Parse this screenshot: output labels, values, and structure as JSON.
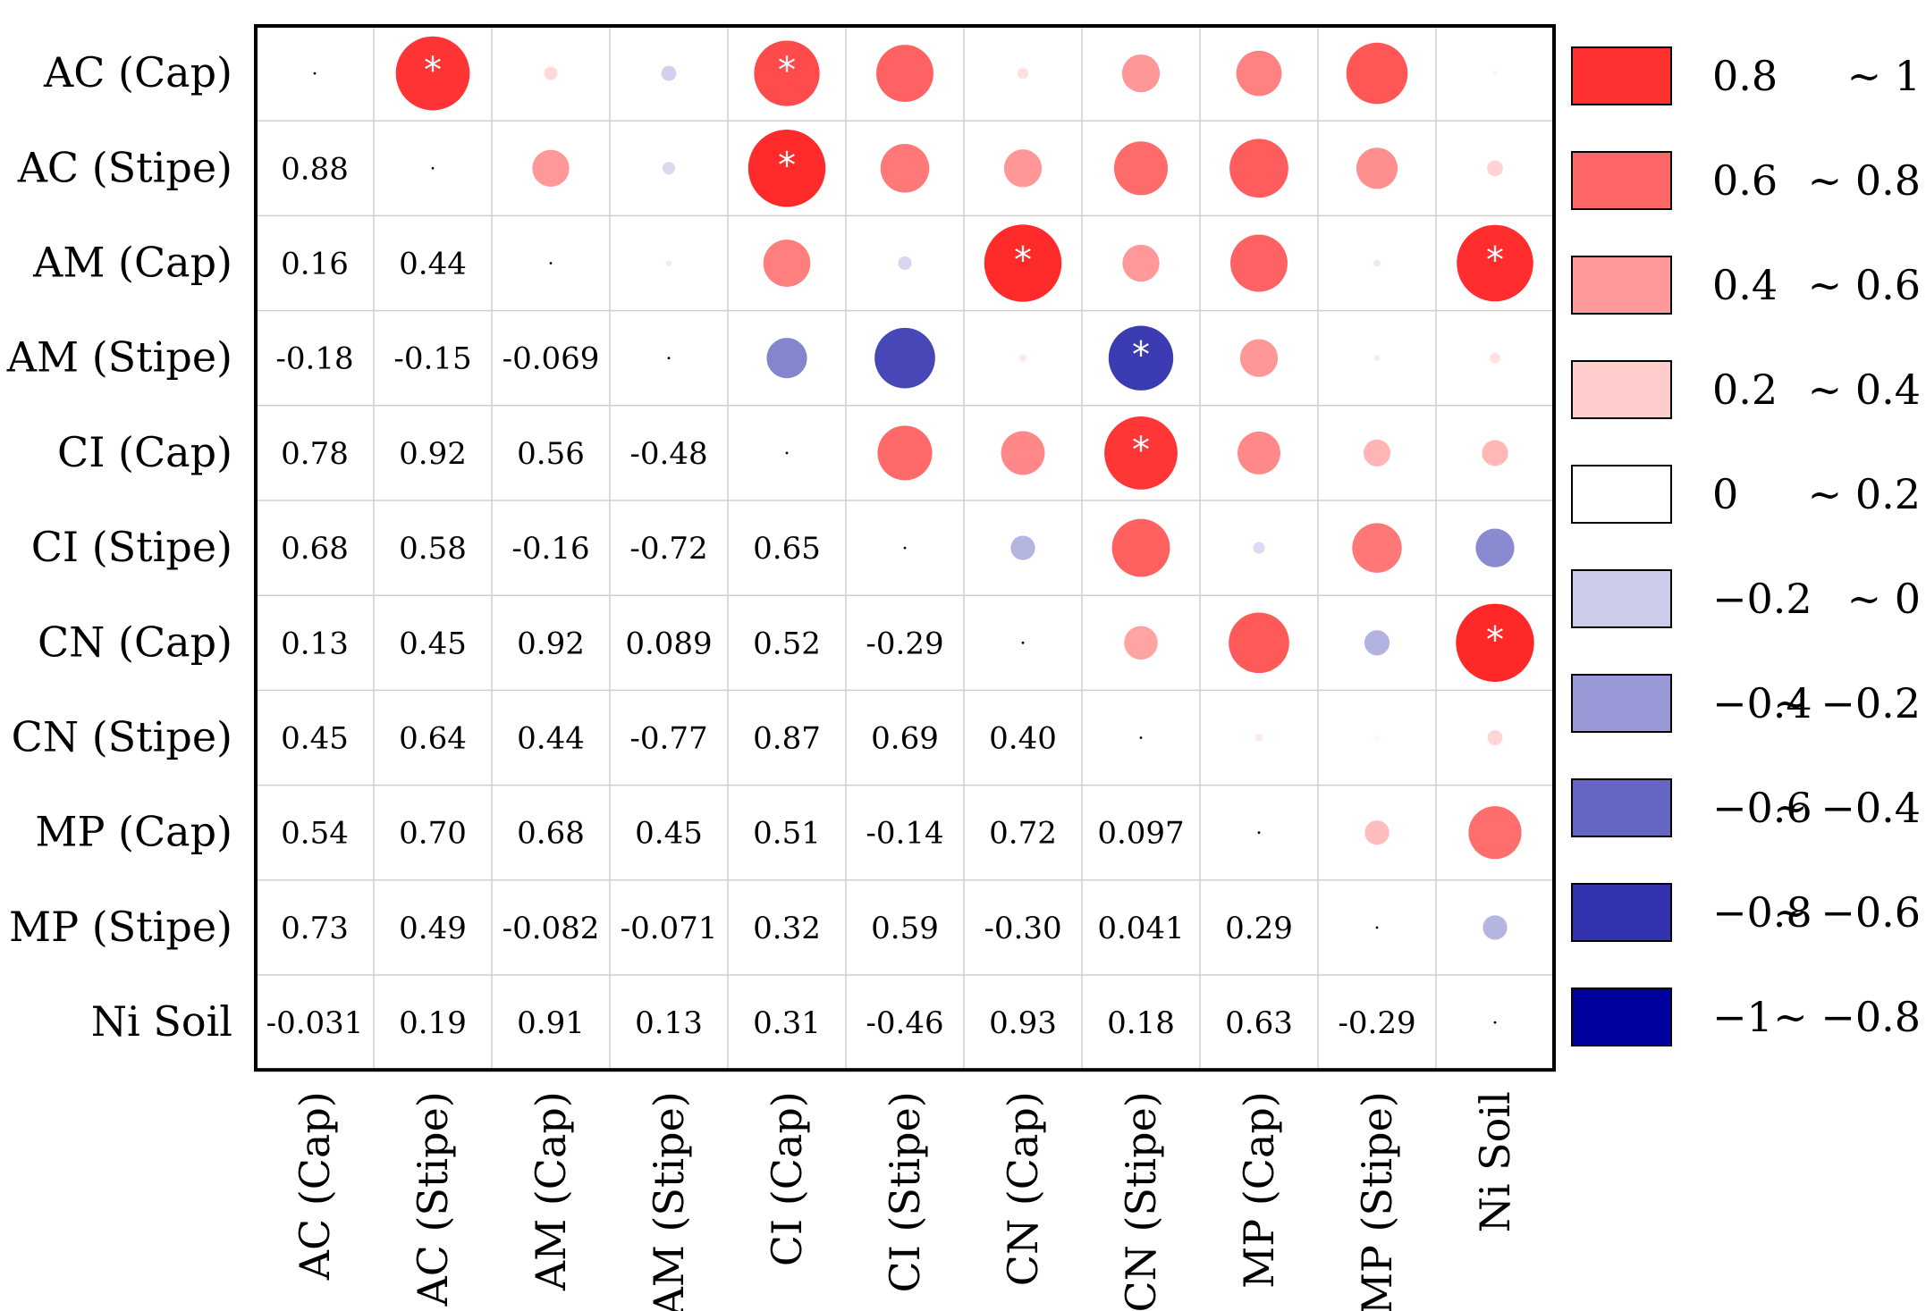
{
  "chart_data": {
    "type": "heatmap",
    "variables": [
      "AC (Cap)",
      "AC (Stipe)",
      "AM (Cap)",
      "AM (Stipe)",
      "CI (Cap)",
      "CI (Stipe)",
      "CN (Cap)",
      "CN (Stipe)",
      "MP (Cap)",
      "MP (Stipe)",
      "Ni Soil"
    ],
    "lower_labels": [
      [],
      [
        "0.88"
      ],
      [
        "0.16",
        "0.44"
      ],
      [
        "-0.18",
        "-0.15",
        "-0.069"
      ],
      [
        "0.78",
        "0.92",
        "0.56",
        "-0.48"
      ],
      [
        "0.68",
        "0.58",
        "-0.16",
        "-0.72",
        "0.65"
      ],
      [
        "0.13",
        "0.45",
        "0.92",
        "0.089",
        "0.52",
        "-0.29"
      ],
      [
        "0.45",
        "0.64",
        "0.44",
        "-0.77",
        "0.87",
        "0.69",
        "0.40"
      ],
      [
        "0.54",
        "0.70",
        "0.68",
        "0.45",
        "0.51",
        "-0.14",
        "0.72",
        "0.097"
      ],
      [
        "0.73",
        "0.49",
        "-0.082",
        "-0.071",
        "0.32",
        "0.59",
        "-0.30",
        "0.041",
        "0.29"
      ],
      [
        "-0.031",
        "0.19",
        "0.91",
        "0.13",
        "0.31",
        "-0.46",
        "0.93",
        "0.18",
        "0.63",
        "-0.29"
      ]
    ],
    "significance_marker": "*",
    "significant_pairs": [
      [
        0,
        1
      ],
      [
        0,
        4
      ],
      [
        1,
        4
      ],
      [
        2,
        6
      ],
      [
        2,
        10
      ],
      [
        3,
        7
      ],
      [
        4,
        7
      ],
      [
        6,
        10
      ]
    ],
    "legend": [
      {
        "label": "0.8",
        "range_end": "~ 1",
        "color": "#ff3030"
      },
      {
        "label": "0.6",
        "range_end": "~ 0.8",
        "color": "#ff6666"
      },
      {
        "label": "0.4",
        "range_end": "~ 0.6",
        "color": "#ff9999"
      },
      {
        "label": "0.2",
        "range_end": "~ 0.4",
        "color": "#ffcccc"
      },
      {
        "label": "0",
        "range_end": "~ 0.2",
        "color": "#ffffff"
      },
      {
        "label": "−0.2",
        "range_end": "~ 0",
        "color": "#ccccea"
      },
      {
        "label": "−0.4",
        "range_end": "~ −0.2",
        "color": "#9999d8"
      },
      {
        "label": "−0.6",
        "range_end": "~ −0.4",
        "color": "#6666c4"
      },
      {
        "label": "−0.8",
        "range_end": "~ −0.6",
        "color": "#3333b0"
      },
      {
        "label": "−1",
        "range_end": "~ −0.8",
        "color": "#00009c"
      }
    ],
    "value_range": [
      -1,
      1
    ],
    "grid": true
  }
}
